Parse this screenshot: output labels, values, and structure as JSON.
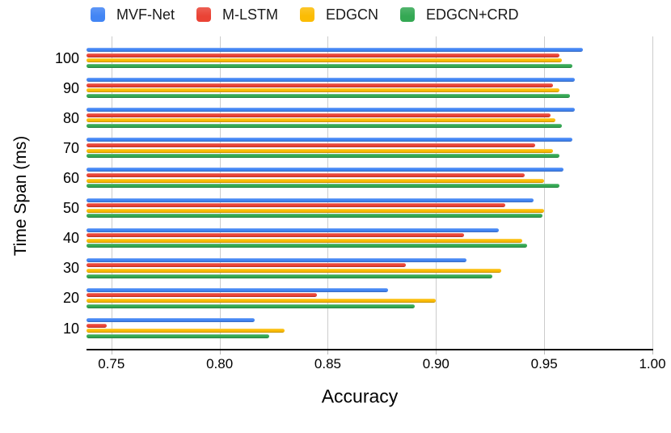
{
  "chart_data": {
    "type": "bar",
    "orientation": "horizontal",
    "xlabel": "Accuracy",
    "ylabel": "Time Span (ms)",
    "grid": true,
    "legend_position": "top",
    "categories": [
      "100",
      "90",
      "80",
      "70",
      "60",
      "50",
      "40",
      "30",
      "20",
      "10"
    ],
    "series": [
      {
        "name": "MVF-Net",
        "color": "#4285F4",
        "values": [
          0.968,
          0.964,
          0.964,
          0.963,
          0.959,
          0.945,
          0.929,
          0.914,
          0.878,
          0.816
        ]
      },
      {
        "name": "M-LSTM",
        "color": "#EA4335",
        "values": [
          0.957,
          0.954,
          0.953,
          0.946,
          0.941,
          0.932,
          0.913,
          0.886,
          0.845,
          0.748
        ]
      },
      {
        "name": "EDGCN",
        "color": "#FBBC04",
        "values": [
          0.958,
          0.957,
          0.955,
          0.954,
          0.95,
          0.95,
          0.94,
          0.93,
          0.9,
          0.83
        ]
      },
      {
        "name": "EDGCN+CRD",
        "color": "#34A853",
        "values": [
          0.963,
          0.962,
          0.958,
          0.957,
          0.957,
          0.949,
          0.942,
          0.926,
          0.89,
          0.823
        ]
      }
    ],
    "x_axis": {
      "min": 0.7385,
      "max": 1.0,
      "ticks": [
        0.75,
        0.8,
        0.85,
        0.9,
        0.95,
        1.0
      ],
      "tick_labels": [
        "0.75",
        "0.80",
        "0.85",
        "0.90",
        "0.95",
        "1.00"
      ]
    },
    "colors": {
      "gridline": "#cccccc",
      "axis_line": "#111111",
      "text": "#000000"
    }
  }
}
